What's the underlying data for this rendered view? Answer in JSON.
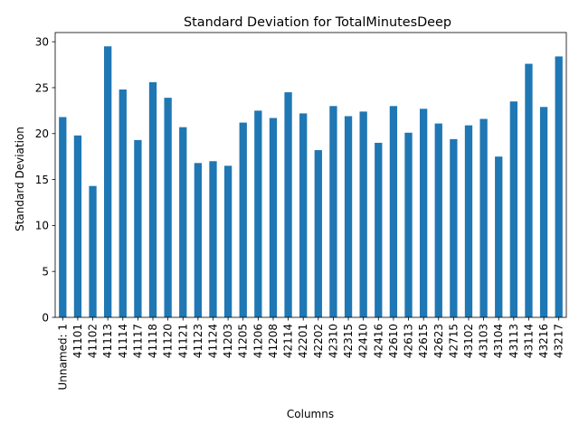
{
  "chart_data": {
    "type": "bar",
    "title": "Standard Deviation for TotalMinutesDeep",
    "xlabel": "Columns",
    "ylabel": "Standard Deviation",
    "ylim": [
      0,
      31
    ],
    "yticks": [
      0,
      5,
      10,
      15,
      20,
      25,
      30
    ],
    "grid": false,
    "bar_color": "#1f77b4",
    "categories": [
      "Unnamed: 1",
      "41101",
      "41102",
      "41113",
      "41114",
      "41117",
      "41118",
      "41120",
      "41121",
      "41123",
      "41124",
      "41203",
      "41205",
      "41206",
      "41208",
      "42114",
      "42201",
      "42202",
      "42310",
      "42315",
      "42410",
      "42416",
      "42610",
      "42613",
      "42615",
      "42623",
      "42715",
      "43102",
      "43103",
      "43104",
      "43113",
      "43114",
      "43216",
      "43217"
    ],
    "values": [
      21.8,
      19.8,
      14.3,
      29.5,
      24.8,
      19.3,
      25.6,
      23.9,
      20.7,
      16.8,
      17.0,
      16.5,
      21.2,
      22.5,
      21.7,
      24.5,
      22.2,
      18.2,
      23.0,
      21.9,
      22.4,
      19.0,
      23.0,
      20.1,
      22.7,
      21.1,
      19.4,
      20.9,
      21.6,
      17.5,
      23.5,
      27.6,
      22.9,
      28.4
    ]
  }
}
